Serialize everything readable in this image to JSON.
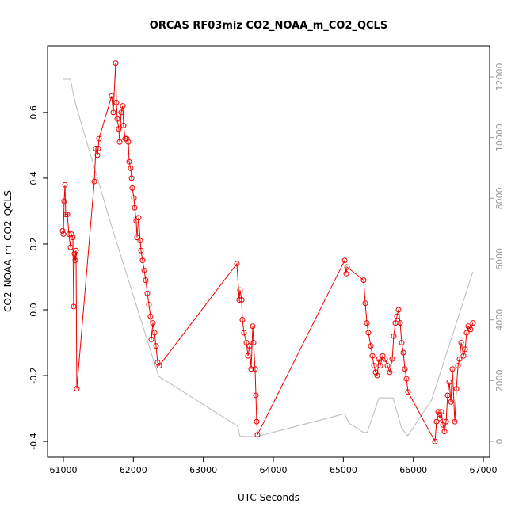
{
  "chart_data": {
    "type": "line",
    "title": "ORCAS RF03miz CO2_NOAA_m_CO2_QCLS",
    "x_label": "UTC Seconds",
    "y_label": "CO2_NOAA_m_CO2_QCLS",
    "xlim": [
      60774,
      67090
    ],
    "xticks": [
      61000,
      62000,
      63000,
      64000,
      65000,
      66000,
      67000
    ],
    "ylim": [
      -0.448,
      0.802
    ],
    "yticks": [
      -0.4,
      -0.2,
      {
        "value": 0,
        "label": "0.0"
      },
      0.2,
      0.4,
      0.6
    ],
    "y2lim": [
      -522,
      13017
    ],
    "y2ticks": [
      0,
      2000,
      4000,
      6000,
      8000,
      10000,
      12000
    ],
    "series": [
      {
        "color": "#bbbbbb",
        "axis": "y2",
        "markers": false,
        "x": [
          61000,
          61100,
          61170,
          61680,
          62360,
          63490,
          63520,
          63580,
          63770,
          65020,
          65080,
          65290,
          65340,
          65510,
          65710,
          65830,
          65920,
          66260,
          66850
        ],
        "values": [
          11920,
          11920,
          11140,
          7150,
          2140,
          500,
          180,
          160,
          160,
          910,
          600,
          290,
          290,
          1430,
          1430,
          440,
          180,
          1360,
          5580
        ]
      },
      {
        "color": "#ee0000",
        "axis": "y",
        "markers": true,
        "x": [
          60989,
          61000,
          61011,
          61023,
          61034,
          61057,
          61079,
          61102,
          61113,
          61136,
          61147,
          61158,
          61170,
          61181,
          61192,
          61442,
          61464,
          61487,
          61498,
          61509,
          61690,
          61713,
          61747,
          61758,
          61770,
          61792,
          61804,
          61826,
          61849,
          61860,
          61883,
          61906,
          61928,
          61940,
          61962,
          61974,
          61985,
          62008,
          62019,
          62041,
          62053,
          62075,
          62098,
          62109,
          62132,
          62155,
          62177,
          62200,
          62223,
          62245,
          62257,
          62279,
          62302,
          62324,
          62347,
          62370,
          63479,
          63513,
          63524,
          63547,
          63558,
          63581,
          63615,
          63638,
          63660,
          63683,
          63706,
          63717,
          63739,
          63751,
          63762,
          63773,
          65019,
          65041,
          65053,
          65290,
          65313,
          65336,
          65358,
          65392,
          65415,
          65438,
          65460,
          65483,
          65506,
          65528,
          65562,
          65596,
          65630,
          65664,
          65698,
          65720,
          65743,
          65766,
          65788,
          65811,
          65834,
          65856,
          65879,
          65902,
          65924,
          66309,
          66332,
          66355,
          66377,
          66400,
          66423,
          66445,
          66468,
          66490,
          66513,
          66536,
          66558,
          66592,
          66615,
          66638,
          66660,
          66683,
          66717,
          66740,
          66762,
          66785,
          66819,
          66852
        ],
        "values": [
          0.24,
          0.23,
          0.33,
          0.38,
          0.29,
          0.29,
          0.23,
          0.19,
          0.23,
          0.22,
          0.01,
          0.17,
          0.15,
          0.18,
          -0.24,
          0.39,
          0.49,
          0.47,
          0.49,
          0.52,
          0.65,
          0.6,
          0.75,
          0.63,
          0.58,
          0.55,
          0.51,
          0.6,
          0.62,
          0.56,
          0.52,
          0.52,
          0.51,
          0.45,
          0.43,
          0.4,
          0.37,
          0.34,
          0.31,
          0.27,
          0.22,
          0.28,
          0.21,
          0.18,
          0.15,
          0.12,
          0.09,
          0.05,
          0.015,
          -0.02,
          -0.09,
          -0.04,
          -0.07,
          -0.11,
          -0.16,
          -0.17,
          0.14,
          0.03,
          0.06,
          0.03,
          -0.03,
          -0.07,
          -0.1,
          -0.14,
          -0.11,
          -0.18,
          -0.05,
          -0.1,
          -0.18,
          -0.26,
          -0.34,
          -0.38,
          0.15,
          0.11,
          0.13,
          0.09,
          0.02,
          -0.04,
          -0.07,
          -0.11,
          -0.14,
          -0.17,
          -0.19,
          -0.2,
          -0.15,
          -0.17,
          -0.14,
          -0.15,
          -0.17,
          -0.19,
          -0.15,
          -0.08,
          -0.04,
          -0.02,
          0,
          -0.04,
          -0.1,
          -0.13,
          -0.18,
          -0.21,
          -0.25,
          -0.4,
          -0.34,
          -0.31,
          -0.33,
          -0.31,
          -0.35,
          -0.37,
          -0.34,
          -0.26,
          -0.22,
          -0.28,
          -0.18,
          -0.34,
          -0.24,
          -0.17,
          -0.15,
          -0.1,
          -0.14,
          -0.12,
          -0.07,
          -0.05,
          -0.06,
          -0.04
        ]
      }
    ]
  }
}
